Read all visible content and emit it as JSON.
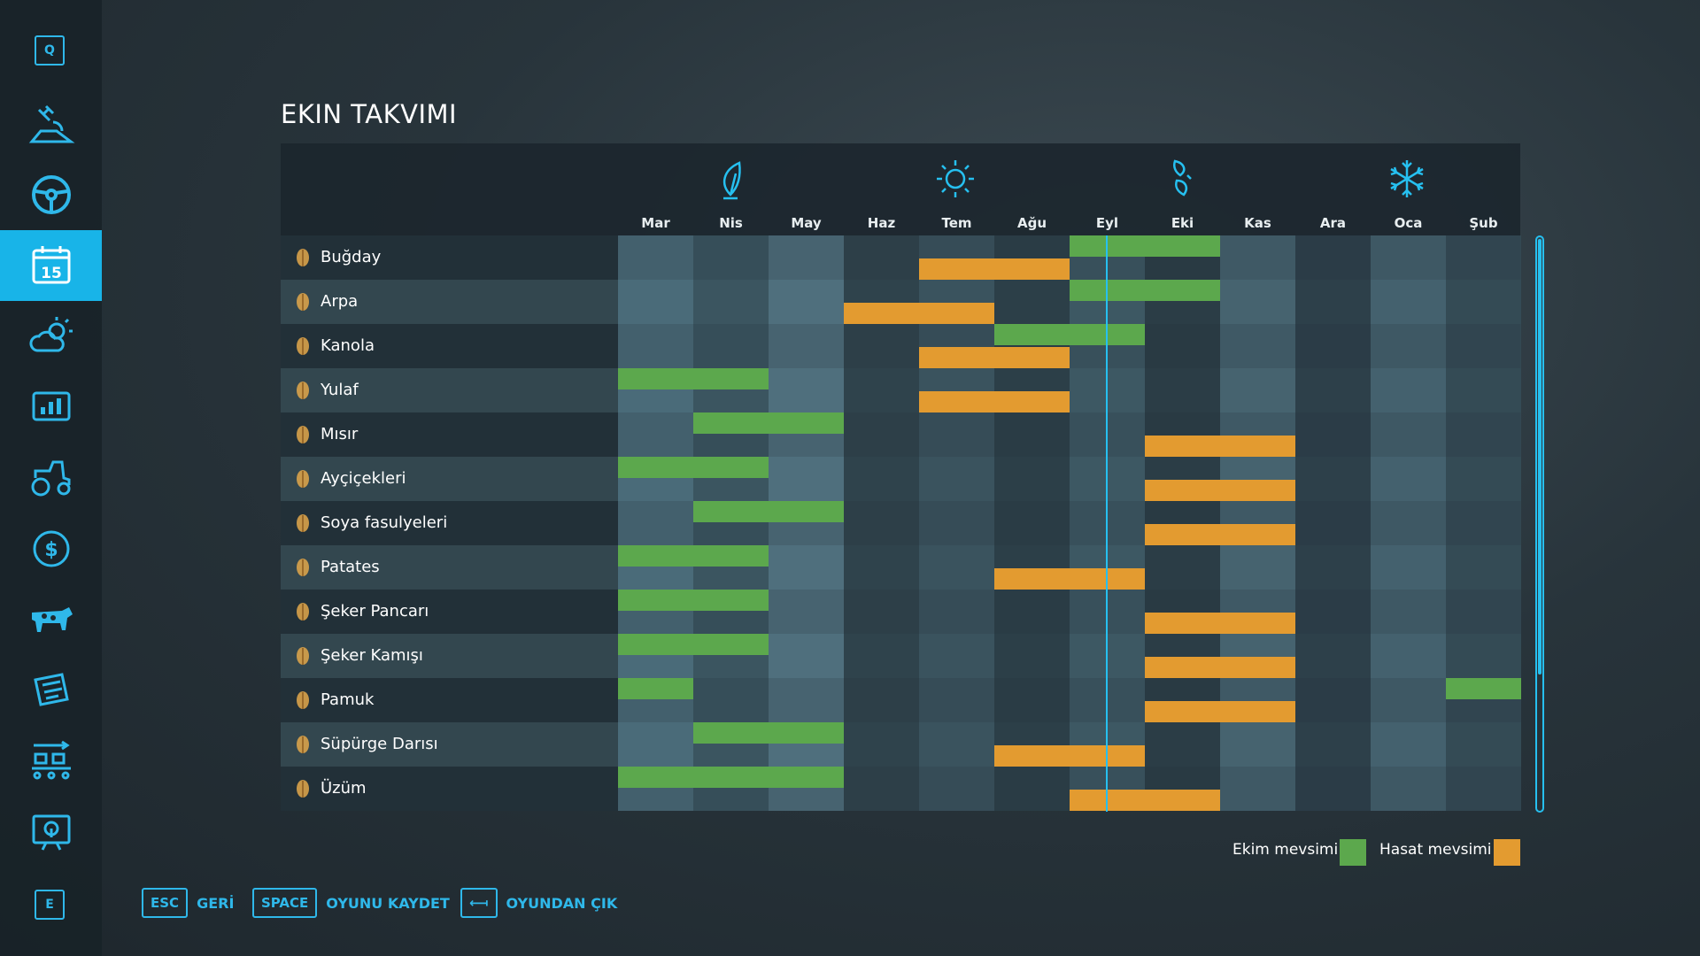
{
  "sidebar": {
    "key_top": "Q",
    "key_bottom": "E",
    "items": [
      {
        "icon": "satellite-map-icon"
      },
      {
        "icon": "steering-wheel-icon"
      },
      {
        "icon": "calendar-icon",
        "label": "15",
        "active": true
      },
      {
        "icon": "weather-icon"
      },
      {
        "icon": "statistics-icon"
      },
      {
        "icon": "tractor-icon"
      },
      {
        "icon": "dollar-icon"
      },
      {
        "icon": "cow-icon"
      },
      {
        "icon": "contracts-icon"
      },
      {
        "icon": "production-icon"
      },
      {
        "icon": "tutorial-icon"
      }
    ]
  },
  "title": "EKIN TAKVIMI",
  "months": [
    "Mar",
    "Nis",
    "May",
    "Haz",
    "Tem",
    "Ağu",
    "Eyl",
    "Eki",
    "Kas",
    "Ara",
    "Oca",
    "Şub"
  ],
  "seasons": [
    {
      "name": "spring",
      "icon": "leaf-icon",
      "month_index": 1
    },
    {
      "name": "summer",
      "icon": "sun-icon",
      "month_index": 4
    },
    {
      "name": "autumn",
      "icon": "falling-leaves-icon",
      "month_index": 7
    },
    {
      "name": "winter",
      "icon": "snowflake-icon",
      "month_index": 10
    }
  ],
  "current_month_position": 6.5,
  "crops": [
    {
      "name": "Buğday",
      "icon": "wheat-icon",
      "plant": [
        [
          6,
          8
        ]
      ],
      "harvest": [
        [
          4,
          6
        ]
      ]
    },
    {
      "name": "Arpa",
      "icon": "barley-icon",
      "plant": [
        [
          6,
          8
        ]
      ],
      "harvest": [
        [
          3,
          5
        ]
      ]
    },
    {
      "name": "Kanola",
      "icon": "canola-icon",
      "plant": [
        [
          5,
          7
        ]
      ],
      "harvest": [
        [
          4,
          6
        ]
      ]
    },
    {
      "name": "Yulaf",
      "icon": "oat-icon",
      "plant": [
        [
          0,
          2
        ]
      ],
      "harvest": [
        [
          4,
          6
        ]
      ]
    },
    {
      "name": "Mısır",
      "icon": "corn-icon",
      "plant": [
        [
          1,
          3
        ]
      ],
      "harvest": [
        [
          7,
          9
        ]
      ]
    },
    {
      "name": "Ayçiçekleri",
      "icon": "sunflower-icon",
      "plant": [
        [
          0,
          2
        ]
      ],
      "harvest": [
        [
          7,
          9
        ]
      ]
    },
    {
      "name": "Soya fasulyeleri",
      "icon": "soybean-icon",
      "plant": [
        [
          1,
          3
        ]
      ],
      "harvest": [
        [
          7,
          9
        ]
      ]
    },
    {
      "name": "Patates",
      "icon": "potato-icon",
      "plant": [
        [
          0,
          2
        ]
      ],
      "harvest": [
        [
          5,
          7
        ]
      ]
    },
    {
      "name": "Şeker Pancarı",
      "icon": "sugarbeet-icon",
      "plant": [
        [
          0,
          2
        ]
      ],
      "harvest": [
        [
          7,
          9
        ]
      ]
    },
    {
      "name": "Şeker Kamışı",
      "icon": "sugarcane-icon",
      "plant": [
        [
          0,
          2
        ]
      ],
      "harvest": [
        [
          7,
          9
        ]
      ]
    },
    {
      "name": "Pamuk",
      "icon": "cotton-icon",
      "plant": [
        [
          0,
          1
        ],
        [
          11,
          12
        ]
      ],
      "harvest": [
        [
          7,
          9
        ]
      ]
    },
    {
      "name": "Süpürge Darısı",
      "icon": "sorghum-icon",
      "plant": [
        [
          1,
          3
        ]
      ],
      "harvest": [
        [
          5,
          7
        ]
      ]
    },
    {
      "name": "Üzüm",
      "icon": "grape-icon",
      "plant": [
        [
          0,
          3
        ]
      ],
      "harvest": [
        [
          6,
          8
        ]
      ]
    }
  ],
  "legend": {
    "plant_label": "Ekim mevsimi",
    "harvest_label": "Hasat mevsimi",
    "plant_color": "#5ca84d",
    "harvest_color": "#e39b30"
  },
  "footer": {
    "back_key": "ESC",
    "back_label": "GERİ",
    "save_key": "SPACE",
    "save_label": "OYUNU KAYDET",
    "quit_key": "⟻",
    "quit_label": "OYUNDAN ÇIK"
  },
  "accent_color": "#18b4e8"
}
